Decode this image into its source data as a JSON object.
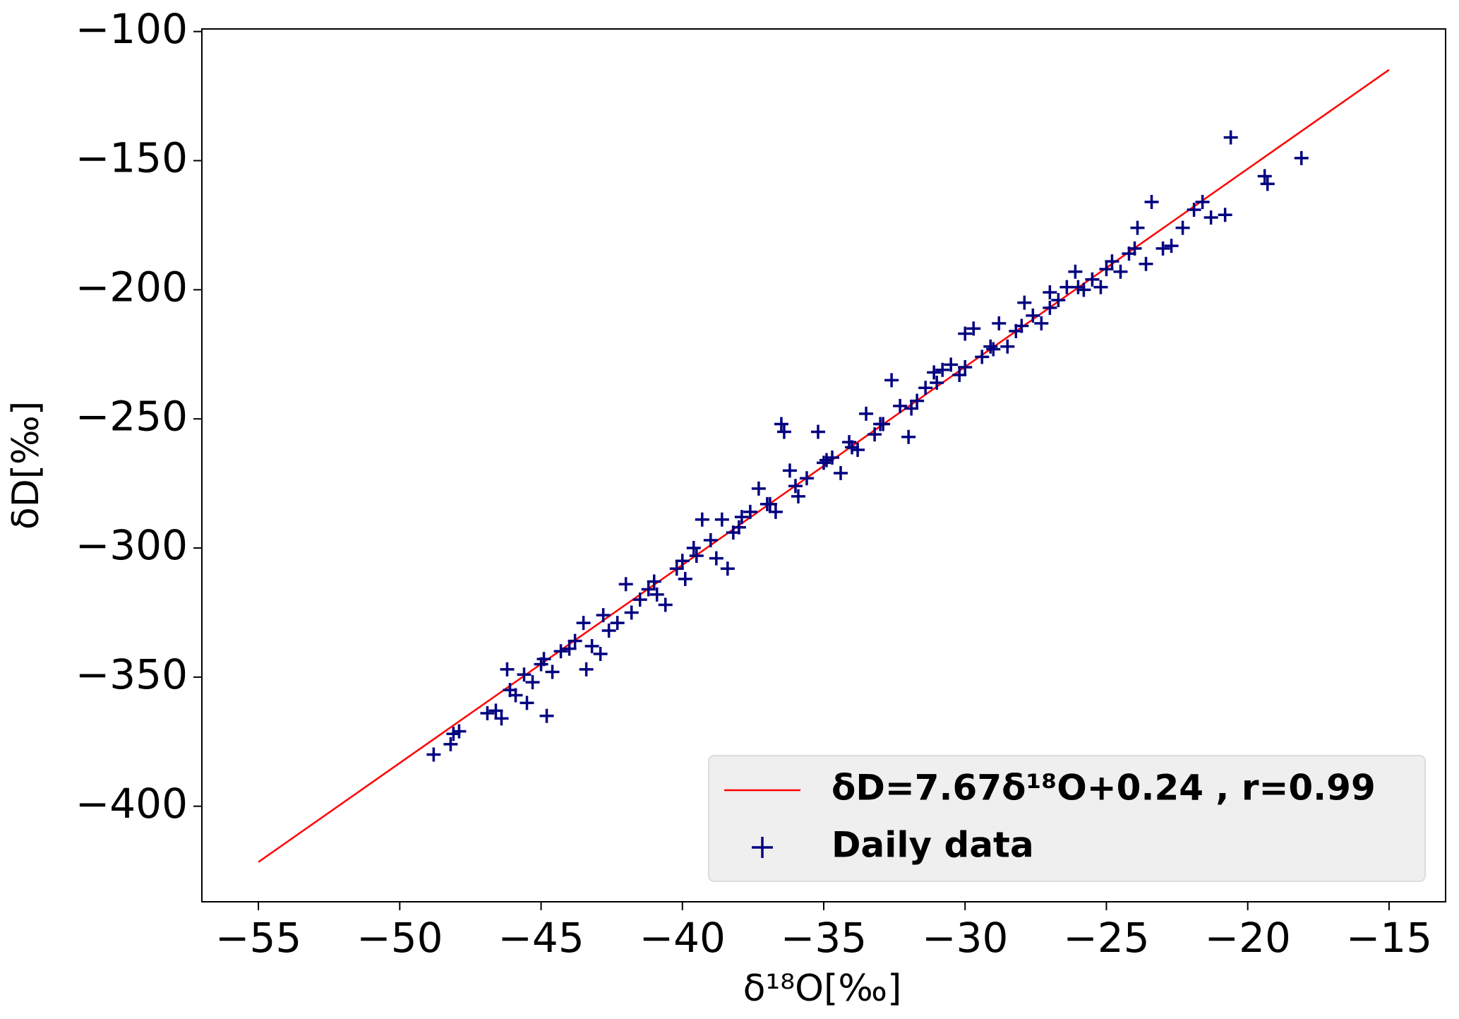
{
  "chart_data": {
    "type": "scatter",
    "x_label": "δ¹⁸O[‰]",
    "y_label": "δD[‰]",
    "xlim": [
      -57,
      -13
    ],
    "ylim": [
      -437,
      -99
    ],
    "xticks": [
      {
        "value": -55,
        "label": "−55"
      },
      {
        "value": -50,
        "label": "−50"
      },
      {
        "value": -45,
        "label": "−45"
      },
      {
        "value": -40,
        "label": "−40"
      },
      {
        "value": -35,
        "label": "−35"
      },
      {
        "value": -30,
        "label": "−30"
      },
      {
        "value": -25,
        "label": "−25"
      },
      {
        "value": -20,
        "label": "−20"
      },
      {
        "value": -15,
        "label": "−15"
      }
    ],
    "yticks": [
      {
        "value": -400,
        "label": "−400"
      },
      {
        "value": -350,
        "label": "−350"
      },
      {
        "value": -300,
        "label": "−300"
      },
      {
        "value": -250,
        "label": "−250"
      },
      {
        "value": -200,
        "label": "−200"
      },
      {
        "value": -150,
        "label": "−150"
      },
      {
        "value": -100,
        "label": "−100"
      }
    ],
    "legend": "lower right",
    "series": [
      {
        "name": "δD=7.67δ¹⁸O+0.24 , r=0.99",
        "kind": "line",
        "color": "#ff0000",
        "x": [
          -55,
          -15
        ],
        "values": [
          -421.61,
          -114.81
        ]
      },
      {
        "name": "Daily data",
        "kind": "marker",
        "color": "#000080",
        "x": [
          -48.8,
          -48.2,
          -48.1,
          -47.9,
          -46.9,
          -46.6,
          -46.4,
          -46.2,
          -46.1,
          -45.9,
          -45.6,
          -45.5,
          -45.3,
          -44.8,
          -44.9,
          -44.6,
          -44.3,
          -44.0,
          -43.5,
          -43.4,
          -43.2,
          -42.9,
          -42.6,
          -42.3,
          -42.0,
          -41.8,
          -41.5,
          -41.2,
          -40.9,
          -40.6,
          -40.2,
          -39.9,
          -39.6,
          -39.3,
          -39.0,
          -38.8,
          -38.6,
          -38.4,
          -38.2,
          -37.9,
          -37.6,
          -37.3,
          -37.0,
          -36.7,
          -36.5,
          -36.4,
          -36.2,
          -35.9,
          -35.6,
          -35.2,
          -35.0,
          -34.7,
          -34.4,
          -34.1,
          -33.8,
          -33.5,
          -33.2,
          -32.9,
          -32.6,
          -32.3,
          -32.0,
          -31.7,
          -31.4,
          -31.1,
          -30.8,
          -30.5,
          -30.2,
          -30.0,
          -29.7,
          -29.4,
          -29.1,
          -28.8,
          -28.5,
          -28.2,
          -27.9,
          -27.6,
          -27.3,
          -27.0,
          -26.7,
          -26.4,
          -26.1,
          -25.8,
          -25.5,
          -25.2,
          -24.8,
          -24.5,
          -24.2,
          -23.9,
          -23.6,
          -23.4,
          -23.0,
          -22.7,
          -22.3,
          -21.9,
          -21.6,
          -21.3,
          -20.8,
          -20.6,
          -19.4,
          -19.3,
          -18.1,
          -45.0,
          -43.8,
          -42.8,
          -41.0,
          -40.0,
          -39.5,
          -38.0,
          -36.9,
          -36.0,
          -34.9,
          -34.0,
          -33.0,
          -31.9,
          -31.0,
          -30.0,
          -29.0,
          -28.0,
          -27.0,
          -26.0,
          -25.0,
          -24.0
        ],
        "values": [
          -380,
          -376,
          -372,
          -371,
          -364,
          -363,
          -366,
          -347,
          -355,
          -357,
          -349,
          -360,
          -352,
          -365,
          -343,
          -348,
          -340,
          -339,
          -329,
          -347,
          -338,
          -341,
          -332,
          -329,
          -314,
          -325,
          -320,
          -316,
          -318,
          -322,
          -308,
          -312,
          -300,
          -289,
          -297,
          -304,
          -289,
          -308,
          -294,
          -288,
          -286,
          -277,
          -283,
          -286,
          -252,
          -255,
          -270,
          -280,
          -273,
          -255,
          -267,
          -265,
          -271,
          -259,
          -262,
          -248,
          -256,
          -252,
          -235,
          -245,
          -257,
          -243,
          -238,
          -232,
          -231,
          -229,
          -233,
          -217,
          -215,
          -226,
          -222,
          -213,
          -222,
          -216,
          -205,
          -210,
          -213,
          -201,
          -204,
          -199,
          -193,
          -200,
          -196,
          -199,
          -189,
          -193,
          -186,
          -176,
          -190,
          -166,
          -184,
          -183,
          -176,
          -169,
          -166,
          -172,
          -171,
          -141,
          -156,
          -159,
          -149,
          -345,
          -336,
          -326,
          -313,
          -305,
          -303,
          -292,
          -283,
          -276,
          -266,
          -261,
          -252,
          -246,
          -236,
          -230,
          -223,
          -214,
          -207,
          -199,
          -192,
          -184
        ]
      }
    ]
  }
}
